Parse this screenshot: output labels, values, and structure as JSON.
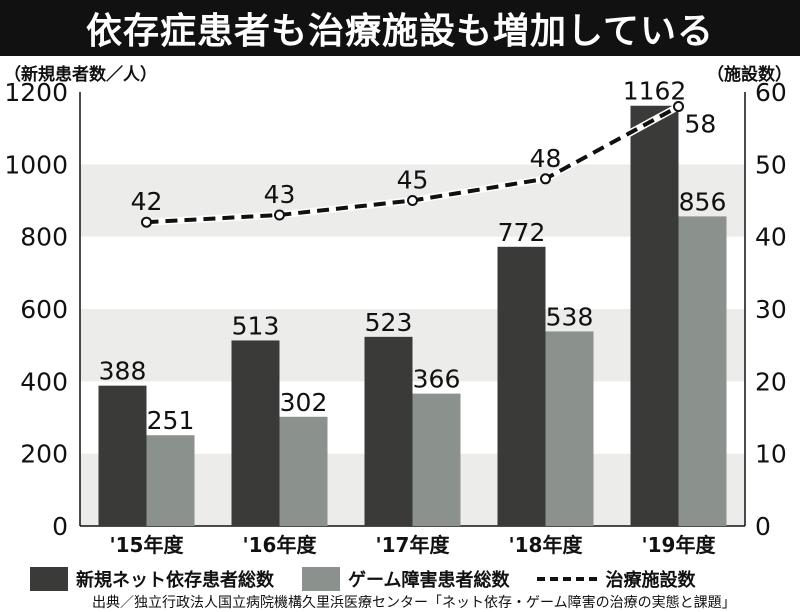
{
  "header": {
    "title": "依存症患者も治療施設も増加している"
  },
  "chart_data": {
    "type": "bar",
    "title": "依存症患者も治療施設も増加している",
    "categories": [
      "'15年度",
      "'16年度",
      "'17年度",
      "'18年度",
      "'19年度"
    ],
    "ylabel": "（新規患者数／人）",
    "y2label": "（施設数）",
    "ylim": [
      0,
      1200
    ],
    "yticks": [
      "0",
      "200",
      "400",
      "600",
      "800",
      "1000",
      "1200"
    ],
    "y2lim": [
      0,
      60
    ],
    "y2ticks": [
      "0",
      "10",
      "20",
      "30",
      "40",
      "50",
      "60"
    ],
    "series": [
      {
        "name": "新規ネット依存患者総数",
        "type": "bar",
        "axis": "left",
        "color": "#3a3a38",
        "values": [
          388,
          513,
          523,
          772,
          1162
        ],
        "labels": [
          "388",
          "513",
          "523",
          "772",
          "1162"
        ]
      },
      {
        "name": "ゲーム障害患者総数",
        "type": "bar",
        "axis": "left",
        "color": "#8b918d",
        "values": [
          251,
          302,
          366,
          538,
          856
        ],
        "labels": [
          "251",
          "302",
          "366",
          "538",
          "856"
        ]
      },
      {
        "name": "治療施設数",
        "type": "line",
        "style": "dashed",
        "axis": "right",
        "color": "#111111",
        "values": [
          42,
          43,
          45,
          48,
          58
        ],
        "labels": [
          "42",
          "43",
          "45",
          "48",
          "58"
        ]
      }
    ],
    "grid": "horizontal bands",
    "legend": "bottom"
  },
  "source": "出典／独立行政法人国立病院機構久里浜医療センター「ネット依存・ゲーム障害の治療の実態と課題」"
}
